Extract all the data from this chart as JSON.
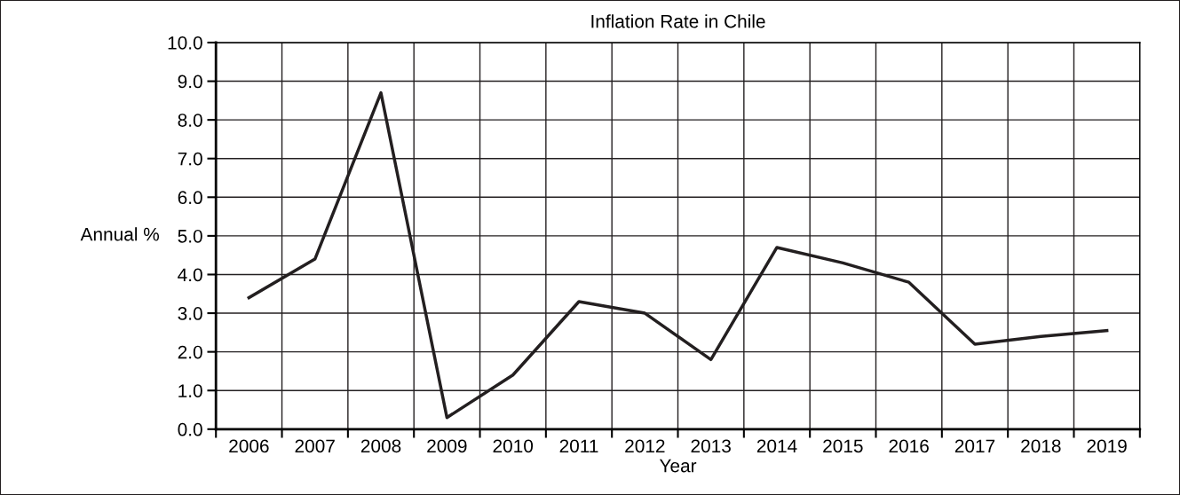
{
  "chart_data": {
    "type": "line",
    "title": "Inflation Rate in Chile",
    "xlabel": "Year",
    "ylabel": "Annual %",
    "categories": [
      "2006",
      "2007",
      "2008",
      "2009",
      "2010",
      "2011",
      "2012",
      "2013",
      "2014",
      "2015",
      "2016",
      "2017",
      "2018",
      "2019"
    ],
    "series": [
      {
        "color": "#231f20",
        "values": [
          3.4,
          4.4,
          8.7,
          0.3,
          1.4,
          3.3,
          3.0,
          1.8,
          4.7,
          4.3,
          3.8,
          2.2,
          2.4,
          2.55
        ]
      }
    ],
    "ylim": [
      0,
      10
    ],
    "yticks": [
      {
        "value": 0,
        "label": "0.0"
      },
      {
        "value": 1,
        "label": "1.0"
      },
      {
        "value": 2,
        "label": "2.0"
      },
      {
        "value": 3,
        "label": "3.0"
      },
      {
        "value": 4,
        "label": "4.0"
      },
      {
        "value": 5,
        "label": "5.0"
      },
      {
        "value": 6,
        "label": "6.0"
      },
      {
        "value": 7,
        "label": "7.0"
      },
      {
        "value": 8,
        "label": "8.0"
      },
      {
        "value": 9,
        "label": "9.0"
      },
      {
        "value": 10,
        "label": "10.0"
      }
    ],
    "grid": true,
    "legend": false,
    "marker": "none",
    "line_style": "solid"
  }
}
